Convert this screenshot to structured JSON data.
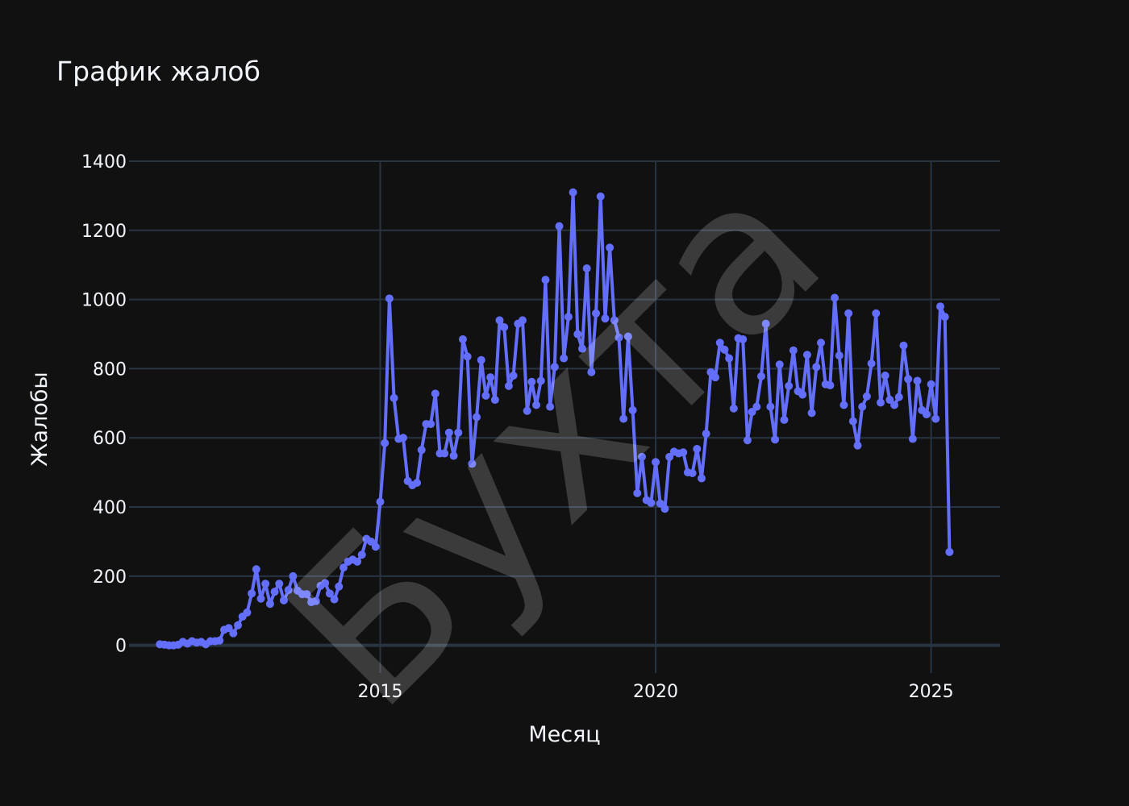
{
  "chart_data": {
    "type": "line",
    "title": "График жалоб",
    "xlabel": "Месяц",
    "ylabel": "Жалобы",
    "watermark": "Бухта",
    "ylim": [
      -80,
      1400
    ],
    "xlim": [
      2010.44,
      2026.25
    ],
    "y_ticks": [
      0,
      200,
      400,
      600,
      800,
      1000,
      1200,
      1400
    ],
    "x_ticks": [
      2015,
      2020,
      2025
    ],
    "grid": true,
    "colors": {
      "background": "#111111",
      "grid": "#283442",
      "line": "#636efa",
      "text": "#f2f5fa"
    },
    "series": [
      {
        "start": "2011-01",
        "values": [
          3,
          2,
          0,
          0,
          2,
          10,
          5,
          12,
          8,
          10,
          3,
          12,
          12,
          14,
          45,
          50,
          35,
          58,
          83,
          95,
          150,
          220,
          135,
          178,
          120,
          155,
          178,
          130,
          160,
          200,
          158,
          148,
          148,
          125,
          128,
          172,
          180,
          150,
          133,
          170,
          225,
          242,
          248,
          242,
          262,
          308,
          300,
          285,
          415,
          585,
          1003,
          715,
          597,
          600,
          475,
          463,
          470,
          565,
          640,
          640,
          728,
          555,
          555,
          615,
          548,
          615,
          885,
          835,
          525,
          660,
          825,
          722,
          775,
          710,
          940,
          920,
          750,
          780,
          930,
          940,
          678,
          762,
          695,
          765,
          1057,
          690,
          805,
          1212,
          830,
          950,
          1310,
          900,
          858,
          1090,
          790,
          960,
          1298,
          945,
          1150,
          940,
          890,
          655,
          893,
          680,
          440,
          545,
          420,
          412,
          530,
          410,
          395,
          545,
          560,
          555,
          558,
          500,
          498,
          568,
          483,
          612,
          790,
          775,
          875,
          855,
          830,
          685,
          888,
          885,
          593,
          675,
          690,
          778,
          930,
          690,
          595,
          812,
          652,
          750,
          853,
          735,
          725,
          840,
          672,
          805,
          875,
          755,
          752,
          1005,
          838,
          695,
          960,
          648,
          578,
          690,
          720,
          815,
          960,
          702,
          780,
          710,
          695,
          718,
          867,
          770,
          597,
          765,
          680,
          668,
          755,
          655,
          980,
          950,
          270
        ]
      }
    ]
  }
}
